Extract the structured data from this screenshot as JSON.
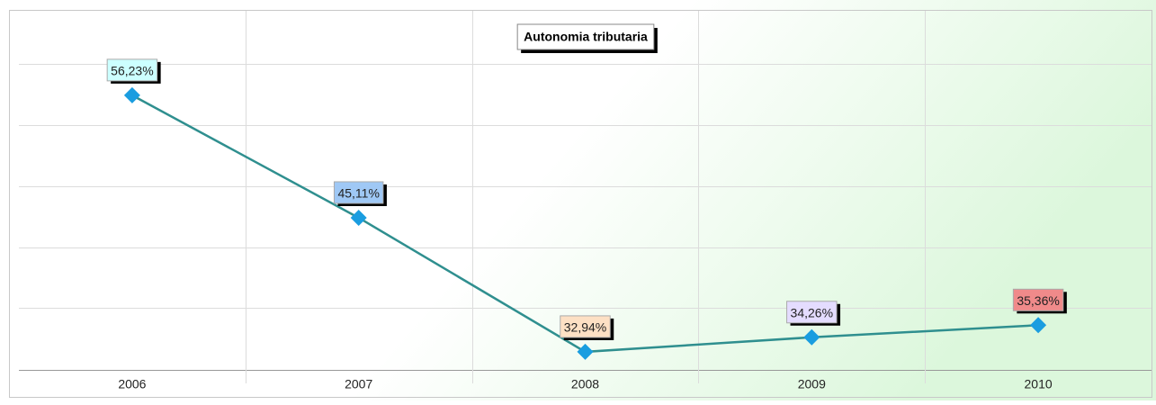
{
  "chart_data": {
    "type": "line",
    "title": "Autonomia tributaria",
    "categories": [
      "2006",
      "2007",
      "2008",
      "2009",
      "2010"
    ],
    "series": [
      {
        "color": "#2f8f8f",
        "marker_color": "#1a9de0",
        "values": [
          56.23,
          45.11,
          32.94,
          34.26,
          35.36
        ],
        "value_labels": [
          "56,23%",
          "45,11%",
          "32,94%",
          "34,26%",
          "35,36%"
        ],
        "label_colors": [
          "#ccffff",
          "#9fc8f5",
          "#fde0c4",
          "#e4dcff",
          "#f08a8a"
        ]
      }
    ],
    "ylim": [
      31.3,
      63.9
    ],
    "yticks": [
      31.3,
      36.9,
      42.4,
      48.0,
      53.5,
      59.1
    ],
    "grid": true
  }
}
